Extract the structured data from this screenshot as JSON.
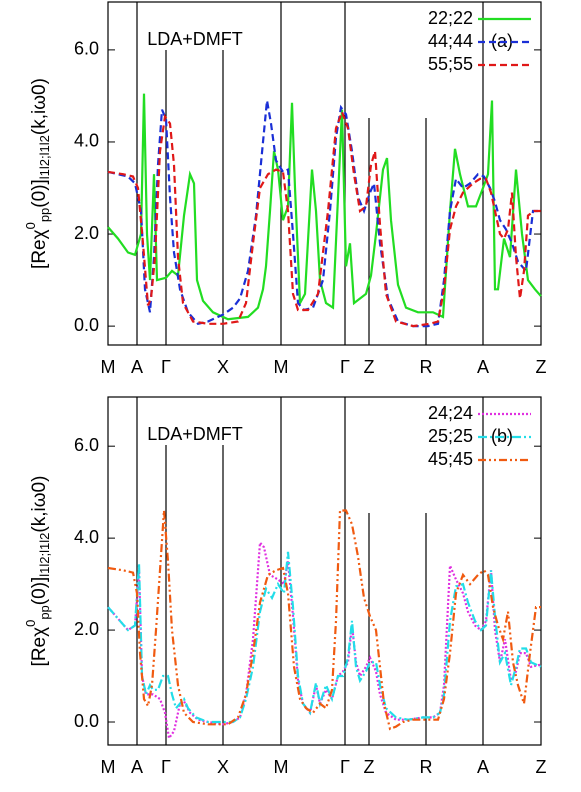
{
  "chart_data": [
    {
      "type": "line",
      "annotation": "LDA+DMFT",
      "panel_label": "(a)",
      "ylabel": [
        "[Reχ",
        "0",
        "pp",
        "(0)]",
        "l1l2;l1l2",
        "(k,iω0)"
      ],
      "xlim": [
        0,
        433
      ],
      "ylim": [
        -0.41,
        7.04
      ],
      "xticks": [
        {
          "value": 0,
          "label": "M"
        },
        {
          "value": 29,
          "label": "A"
        },
        {
          "value": 58,
          "label": "Γ"
        },
        {
          "value": 115,
          "label": "X"
        },
        {
          "value": 173,
          "label": "M"
        },
        {
          "value": 237,
          "label": "Γ"
        },
        {
          "value": 261,
          "label": "Z"
        },
        {
          "value": 318,
          "label": "R"
        },
        {
          "value": 375,
          "label": "A"
        },
        {
          "value": 433,
          "label": "Z"
        }
      ],
      "yticks": [
        {
          "value": 0,
          "label": "0.0"
        },
        {
          "value": 2,
          "label": "2.0"
        },
        {
          "value": 4,
          "label": "4.0"
        },
        {
          "value": 6,
          "label": "6.0"
        }
      ],
      "series": [
        {
          "name": "22;22",
          "color": "#22dd22",
          "dash": "none",
          "x": [
            0,
            10,
            20,
            27,
            33,
            36,
            39,
            42,
            46,
            49,
            58,
            64,
            70,
            76,
            82,
            86,
            89,
            95,
            105,
            120,
            140,
            150,
            155,
            158,
            162,
            166,
            170,
            175,
            180,
            184,
            187,
            192,
            197,
            204,
            208,
            212,
            218,
            225,
            230,
            234,
            238,
            242,
            246,
            252,
            258,
            263,
            268,
            275,
            279,
            283,
            290,
            298,
            310,
            325,
            335,
            342,
            347,
            352,
            360,
            368,
            375,
            380,
            384,
            387,
            390,
            396,
            402,
            408,
            414,
            420,
            427,
            433
          ],
          "values": [
            2.15,
            1.9,
            1.6,
            1.55,
            2.0,
            5.05,
            2.0,
            1.0,
            3.3,
            1.0,
            1.05,
            1.2,
            1.1,
            2.4,
            3.3,
            3.1,
            1.0,
            0.55,
            0.3,
            0.15,
            0.2,
            0.4,
            0.8,
            1.3,
            2.5,
            3.8,
            3.4,
            2.3,
            2.6,
            4.85,
            3.0,
            0.5,
            0.7,
            3.4,
            2.5,
            1.0,
            0.5,
            0.4,
            2.8,
            4.7,
            1.3,
            1.8,
            0.5,
            0.6,
            0.7,
            1.1,
            2.0,
            3.4,
            3.65,
            2.3,
            0.9,
            0.4,
            0.3,
            0.3,
            0.2,
            2.5,
            3.85,
            3.3,
            2.6,
            2.6,
            3.0,
            3.3,
            4.9,
            0.8,
            0.8,
            1.9,
            1.5,
            3.4,
            2.0,
            1.0,
            0.8,
            0.65
          ]
        },
        {
          "name": "44;44",
          "color": "#1a2fd6",
          "dash": "7,4",
          "x": [
            0,
            10,
            20,
            27,
            33,
            37,
            42,
            46,
            50,
            54,
            58,
            62,
            66,
            72,
            80,
            90,
            100,
            115,
            125,
            132,
            140,
            148,
            155,
            159,
            163,
            168,
            175,
            180,
            185,
            190,
            196,
            205,
            215,
            222,
            228,
            233,
            238,
            244,
            250,
            256,
            262,
            266,
            272,
            280,
            290,
            305,
            320,
            330,
            336,
            342,
            348,
            355,
            362,
            370,
            376,
            382,
            387,
            392,
            398,
            404,
            410,
            418,
            425,
            433
          ],
          "values": [
            3.35,
            3.3,
            3.25,
            3.1,
            2.5,
            0.8,
            0.3,
            1.5,
            3.5,
            4.7,
            4.5,
            2.8,
            1.6,
            0.8,
            0.3,
            0.05,
            0.1,
            0.25,
            0.4,
            0.6,
            1.2,
            2.4,
            4.0,
            4.9,
            4.4,
            3.6,
            3.35,
            3.4,
            2.0,
            0.5,
            0.35,
            0.4,
            1.0,
            2.5,
            4.1,
            4.75,
            4.6,
            3.8,
            2.8,
            2.5,
            2.9,
            3.1,
            1.8,
            0.6,
            0.1,
            0.0,
            0.0,
            0.05,
            1.0,
            2.5,
            3.2,
            3.0,
            3.1,
            3.3,
            3.25,
            3.0,
            2.7,
            2.3,
            2.1,
            1.8,
            1.4,
            1.2,
            2.5,
            2.5
          ]
        },
        {
          "name": "55;55",
          "color": "#e01818",
          "dash": "7,4",
          "x": [
            0,
            15,
            25,
            30,
            35,
            40,
            43,
            47,
            52,
            57,
            62,
            66,
            70,
            75,
            85,
            100,
            115,
            130,
            138,
            145,
            152,
            160,
            168,
            175,
            180,
            185,
            190,
            200,
            210,
            220,
            228,
            234,
            240,
            246,
            252,
            258,
            263,
            267,
            272,
            278,
            288,
            305,
            322,
            330,
            336,
            342,
            348,
            355,
            365,
            372,
            378,
            383,
            388,
            392,
            396,
            400,
            404,
            408,
            412,
            416,
            420,
            426,
            433
          ],
          "values": [
            3.35,
            3.3,
            3.25,
            3.0,
            1.8,
            0.45,
            0.6,
            1.5,
            3.8,
            4.55,
            4.4,
            3.5,
            1.5,
            0.5,
            0.1,
            0.05,
            0.05,
            0.1,
            0.5,
            1.8,
            3.0,
            3.3,
            3.4,
            3.35,
            2.5,
            0.7,
            0.35,
            0.35,
            0.7,
            2.5,
            4.3,
            4.65,
            4.3,
            3.3,
            2.5,
            2.6,
            3.5,
            3.8,
            2.2,
            0.7,
            0.1,
            0.0,
            0.05,
            0.1,
            0.8,
            2.1,
            2.6,
            2.9,
            3.1,
            3.2,
            3.2,
            2.9,
            2.4,
            2.0,
            1.9,
            2.1,
            2.9,
            1.5,
            0.6,
            1.2,
            2.4,
            2.5,
            2.5
          ]
        }
      ]
    },
    {
      "type": "line",
      "annotation": "LDA+DMFT",
      "panel_label": "(b)",
      "ylabel": [
        "[Reχ",
        "0",
        "pp",
        "(0)]",
        "l1l2;l1l2",
        "(k,iω0)"
      ],
      "xlim": [
        0,
        433
      ],
      "ylim": [
        -0.5,
        7.07
      ],
      "xticks": [
        {
          "value": 0,
          "label": "M"
        },
        {
          "value": 29,
          "label": "A"
        },
        {
          "value": 58,
          "label": "Γ"
        },
        {
          "value": 115,
          "label": "X"
        },
        {
          "value": 173,
          "label": "M"
        },
        {
          "value": 237,
          "label": "Γ"
        },
        {
          "value": 261,
          "label": "Z"
        },
        {
          "value": 318,
          "label": "R"
        },
        {
          "value": 375,
          "label": "A"
        },
        {
          "value": 433,
          "label": "Z"
        }
      ],
      "yticks": [
        {
          "value": 0,
          "label": "0.0"
        },
        {
          "value": 2,
          "label": "2.0"
        },
        {
          "value": 4,
          "label": "4.0"
        },
        {
          "value": 6,
          "label": "6.0"
        }
      ],
      "series": [
        {
          "name": "24;24",
          "color": "#e030e0",
          "dash": "2,2",
          "x": [
            0,
            10,
            20,
            27,
            31,
            34,
            38,
            45,
            52,
            57,
            61,
            66,
            72,
            76,
            82,
            90,
            100,
            115,
            125,
            132,
            138,
            145,
            152,
            156,
            162,
            170,
            176,
            180,
            185,
            190,
            195,
            202,
            208,
            212,
            218,
            224,
            230,
            235,
            240,
            244,
            248,
            252,
            258,
            262,
            268,
            272,
            278,
            288,
            300,
            315,
            325,
            332,
            336,
            342,
            348,
            355,
            360,
            367,
            373,
            378,
            383,
            387,
            392,
            397,
            403,
            408,
            412,
            418,
            423,
            433
          ],
          "values": [
            2.5,
            2.25,
            2.0,
            2.1,
            3.3,
            1.0,
            0.6,
            0.6,
            0.5,
            0.2,
            -0.35,
            -0.2,
            0.4,
            0.45,
            0.2,
            0.05,
            0.0,
            -0.05,
            0.0,
            0.1,
            0.6,
            1.8,
            3.9,
            3.8,
            3.2,
            3.1,
            3.0,
            3.5,
            2.3,
            0.9,
            0.4,
            0.2,
            0.8,
            0.4,
            0.7,
            0.5,
            1.0,
            1.1,
            1.3,
            2.1,
            1.3,
            1.0,
            1.2,
            1.4,
            1.1,
            0.6,
            0.2,
            0.05,
            0.05,
            0.1,
            0.1,
            0.2,
            0.8,
            3.4,
            3.1,
            2.8,
            2.4,
            2.1,
            2.0,
            2.2,
            3.3,
            2.0,
            1.3,
            1.8,
            0.9,
            1.1,
            1.5,
            1.5,
            1.2,
            1.25
          ]
        },
        {
          "name": "25;25",
          "color": "#22dde8",
          "dash": "9,3,2,3",
          "x": [
            0,
            10,
            20,
            27,
            31,
            34,
            38,
            42,
            45,
            50,
            55,
            60,
            64,
            68,
            72,
            76,
            80,
            88,
            100,
            115,
            125,
            132,
            138,
            145,
            152,
            158,
            164,
            170,
            176,
            180,
            185,
            190,
            195,
            202,
            208,
            212,
            218,
            224,
            230,
            235,
            240,
            244,
            248,
            252,
            258,
            262,
            268,
            272,
            278,
            288,
            300,
            315,
            325,
            332,
            336,
            342,
            348,
            355,
            360,
            367,
            373,
            378,
            383,
            387,
            392,
            397,
            403,
            408,
            412,
            418,
            423,
            433
          ],
          "values": [
            2.5,
            2.25,
            2.0,
            2.1,
            3.45,
            1.0,
            0.6,
            0.8,
            0.7,
            0.7,
            1.0,
            1.0,
            0.6,
            0.3,
            0.4,
            0.5,
            0.3,
            0.1,
            0.0,
            0.0,
            0.0,
            0.1,
            0.5,
            1.2,
            2.4,
            2.9,
            2.7,
            3.0,
            2.8,
            3.7,
            2.5,
            1.0,
            0.4,
            0.2,
            0.85,
            0.4,
            0.8,
            0.5,
            1.0,
            1.0,
            1.4,
            2.2,
            1.2,
            0.9,
            1.1,
            1.3,
            1.3,
            0.8,
            0.3,
            0.1,
            0.05,
            0.1,
            0.1,
            0.2,
            0.6,
            2.2,
            2.95,
            3.0,
            2.6,
            2.2,
            2.0,
            2.1,
            3.3,
            2.3,
            1.3,
            1.5,
            0.8,
            1.2,
            1.6,
            1.6,
            1.3,
            1.2
          ]
        },
        {
          "name": "45;45",
          "color": "#f05a10",
          "dash": "8,3,2,3,2,3",
          "x": [
            0,
            15,
            25,
            29,
            32,
            36,
            40,
            44,
            48,
            52,
            56,
            60,
            64,
            70,
            76,
            85,
            100,
            120,
            130,
            138,
            145,
            152,
            160,
            168,
            175,
            180,
            186,
            192,
            198,
            205,
            212,
            218,
            224,
            228,
            232,
            238,
            244,
            250,
            256,
            262,
            268,
            272,
            276,
            282,
            288,
            295,
            305,
            320,
            330,
            336,
            342,
            348,
            355,
            362,
            370,
            376,
            380,
            385,
            390,
            395,
            400,
            405,
            410,
            416,
            422,
            428,
            433
          ],
          "values": [
            3.35,
            3.3,
            3.25,
            2.8,
            1.5,
            0.5,
            0.35,
            0.8,
            2.0,
            3.3,
            4.6,
            3.5,
            2.0,
            0.8,
            0.2,
            0.0,
            -0.05,
            -0.05,
            0.1,
            0.6,
            1.5,
            2.6,
            3.2,
            3.3,
            3.35,
            2.8,
            1.2,
            0.5,
            0.3,
            0.2,
            0.4,
            0.3,
            0.7,
            2.2,
            4.6,
            4.6,
            4.3,
            3.6,
            2.7,
            2.3,
            2.0,
            1.2,
            0.4,
            -0.15,
            -0.1,
            0.0,
            0.05,
            0.05,
            0.05,
            0.5,
            1.5,
            2.8,
            3.2,
            3.0,
            3.2,
            3.3,
            3.2,
            2.5,
            2.1,
            1.8,
            2.4,
            1.3,
            0.8,
            0.4,
            1.5,
            2.5,
            2.5
          ]
        }
      ]
    }
  ]
}
